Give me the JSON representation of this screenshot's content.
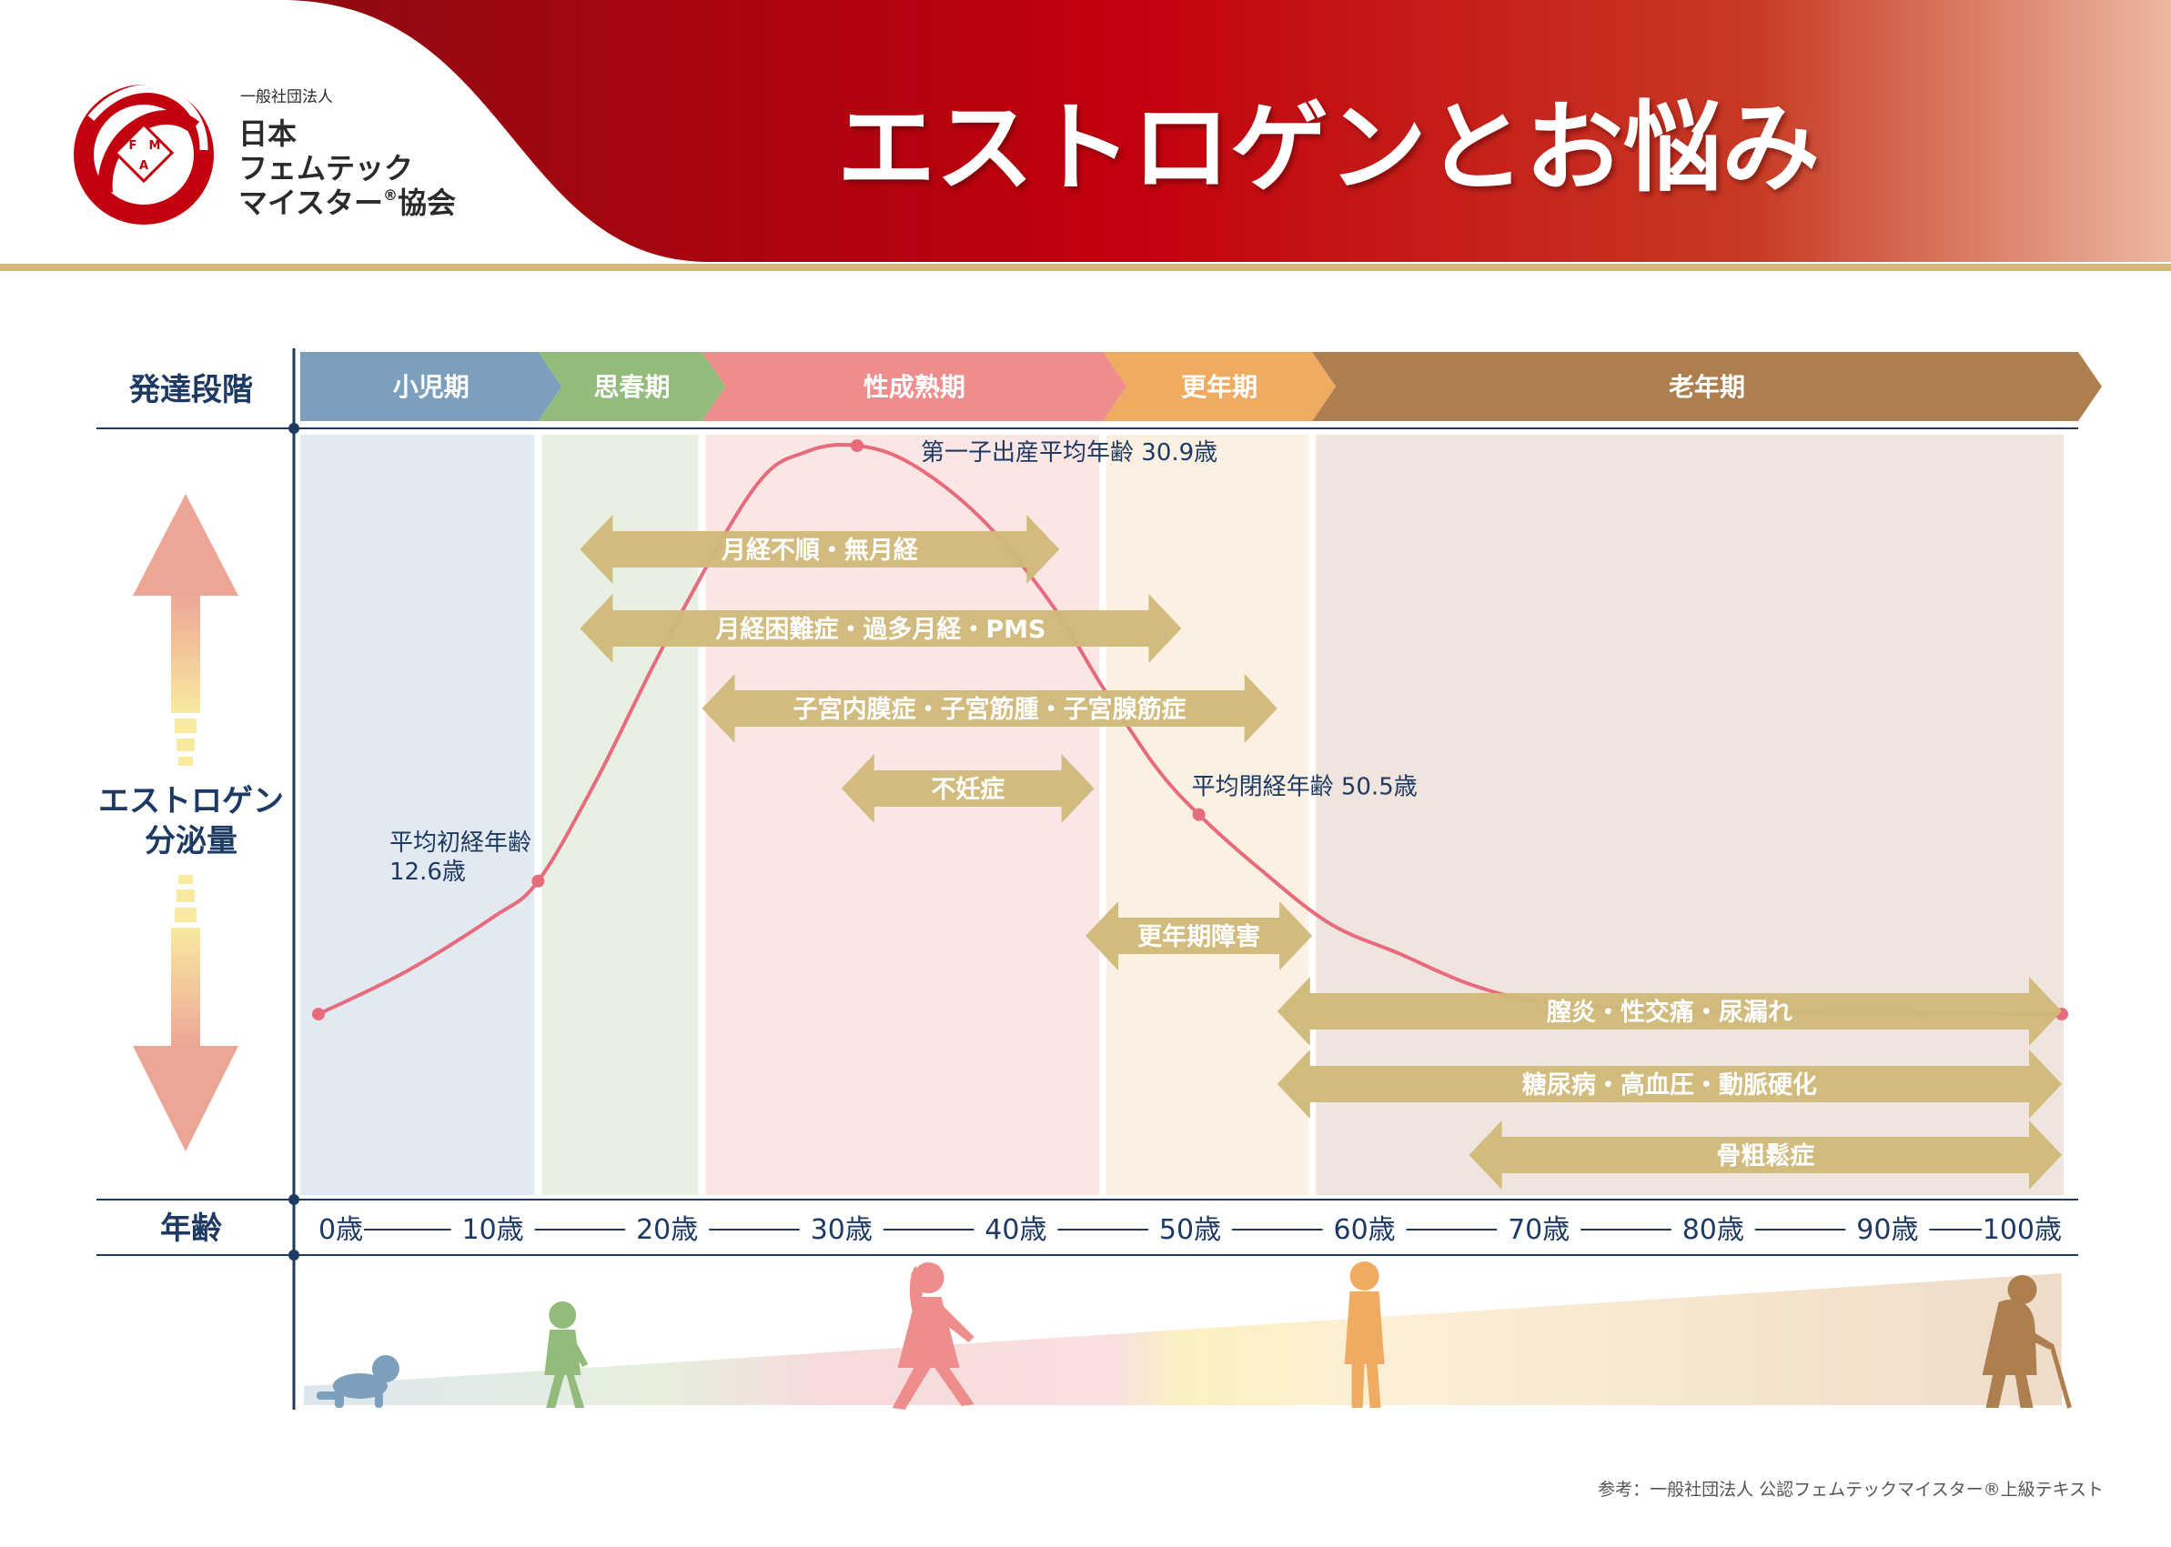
{
  "header": {
    "org_small": "一般社団法人",
    "org_lines": [
      "日本",
      "フェムテック",
      "マイスター"
    ],
    "org_reg_mark": "®",
    "org_last": "協会",
    "logo_letters": [
      "F",
      "M",
      "A"
    ],
    "title": "エストロゲンとお悩み",
    "colors": {
      "header_dark": "#8e0a10",
      "header_mid": "#c3000e",
      "header_light": "#ecb8a0",
      "gold": "#d4b67a",
      "navy": "#1d3a63"
    }
  },
  "row_labels": {
    "stage": "発達段階",
    "estrogen_line1": "エストロゲン",
    "estrogen_line2": "分泌量",
    "age": "年齢"
  },
  "stages": [
    {
      "label": "小児期",
      "from_age": 0,
      "to_age": 12.6,
      "color": "#7b9fbd",
      "bg": "#e3e9f1"
    },
    {
      "label": "思春期",
      "from_age": 12.6,
      "to_age": 22,
      "color": "#93bb7b",
      "bg": "#e8f0e3"
    },
    {
      "label": "性成熟期",
      "from_age": 22,
      "to_age": 45,
      "color": "#ee8e8c",
      "bg": "#fbe6e6"
    },
    {
      "label": "更年期",
      "from_age": 45,
      "to_age": 57,
      "color": "#efab62",
      "bg": "#fbf0e1"
    },
    {
      "label": "老年期",
      "from_age": 57,
      "to_age": 100,
      "color": "#ad7e4e",
      "bg": "#efe4de"
    }
  ],
  "chart_data": {
    "type": "line",
    "title": "エストロゲンとお悩み",
    "xlabel": "年齢",
    "ylabel": "エストロゲン分泌量",
    "x_ticks": [
      "0歳",
      "10歳",
      "20歳",
      "30歳",
      "40歳",
      "50歳",
      "60歳",
      "70歳",
      "80歳",
      "90歳",
      "100歳"
    ],
    "xlim": [
      0,
      100
    ],
    "ylim": [
      0,
      1
    ],
    "grid": false,
    "series": [
      {
        "color": "#e76b7b",
        "points": [
          [
            0,
            0.06
          ],
          [
            5,
            0.13
          ],
          [
            10,
            0.22
          ],
          [
            12.6,
            0.28
          ],
          [
            16,
            0.45
          ],
          [
            20,
            0.68
          ],
          [
            25,
            0.93
          ],
          [
            28,
            0.99
          ],
          [
            30.9,
            1.0
          ],
          [
            34,
            0.97
          ],
          [
            38,
            0.88
          ],
          [
            42,
            0.74
          ],
          [
            45,
            0.6
          ],
          [
            48,
            0.47
          ],
          [
            50.5,
            0.39
          ],
          [
            54,
            0.3
          ],
          [
            58,
            0.21
          ],
          [
            62,
            0.16
          ],
          [
            66,
            0.11
          ],
          [
            70,
            0.08
          ],
          [
            75,
            0.07
          ],
          [
            80,
            0.066
          ],
          [
            90,
            0.062
          ],
          [
            100,
            0.06
          ]
        ]
      }
    ],
    "annotations": [
      {
        "x": 12.6,
        "text_lines": [
          "平均初経年齢",
          "12.6歳"
        ]
      },
      {
        "x": 30.9,
        "text_lines": [
          "第一子出産平均年齢 30.9歳"
        ]
      },
      {
        "x": 50.5,
        "text_lines": [
          "平均閉経年齢 50.5歳"
        ]
      }
    ],
    "problem_ranges": [
      {
        "label": "月経不順・無月経",
        "from_age": 15,
        "to_age": 42.5
      },
      {
        "label": "月経困難症・過多月経・PMS",
        "from_age": 15,
        "to_age": 49.5
      },
      {
        "label": "子宮内膜症・子宮筋腫・子宮腺筋症",
        "from_age": 22,
        "to_age": 55
      },
      {
        "label": "不妊症",
        "from_age": 30,
        "to_age": 44.5
      },
      {
        "label": "更年期障害",
        "from_age": 44,
        "to_age": 57
      },
      {
        "label": "膣炎・性交痛・尿漏れ",
        "from_age": 55,
        "to_age": 100
      },
      {
        "label": "糖尿病・高血圧・動脈硬化",
        "from_age": 55,
        "to_age": 100
      },
      {
        "label": "骨粗鬆症",
        "from_age": 66,
        "to_age": 100
      }
    ],
    "bar_color": "#cfb97a"
  },
  "figures": [
    {
      "icon": "crawling-baby-icon",
      "age": 2.5,
      "color": "#7b9fbd"
    },
    {
      "icon": "walking-child-icon",
      "age": 14,
      "color": "#93bb7b"
    },
    {
      "icon": "walking-woman-icon",
      "age": 35,
      "color": "#ee8e8c"
    },
    {
      "icon": "standing-woman-icon",
      "age": 60,
      "color": "#efab62"
    },
    {
      "icon": "elderly-woman-cane-icon",
      "age": 97,
      "color": "#ad7e4e"
    }
  ],
  "footer": {
    "reference": "参考：一般社団法人 公認フェムテックマイスター®上級テキスト"
  }
}
